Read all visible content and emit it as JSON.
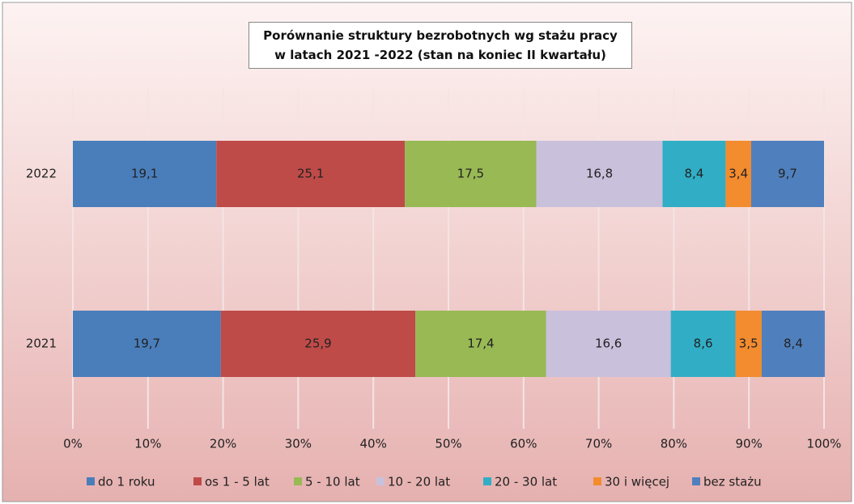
{
  "chart_data": {
    "type": "stacked-barh",
    "title": "Porównanie struktury bezrobotnych wg stażu pracy\nw latach 2021 -2022 (stan na koniec II kwartału)",
    "categories": [
      "2022",
      "2021"
    ],
    "series": [
      {
        "name": "do 1 roku",
        "color": "#4a7ebb",
        "values": [
          19.1,
          19.7
        ],
        "value_labels": [
          "19,1",
          "19,7"
        ]
      },
      {
        "name": "os 1 - 5 lat",
        "color": "#be4b48",
        "values": [
          25.1,
          25.9
        ],
        "value_labels": [
          "25,1",
          "25,9"
        ]
      },
      {
        "name": "5 - 10 lat",
        "color": "#98b954",
        "values": [
          17.5,
          17.4
        ],
        "value_labels": [
          "17,5",
          "17,4"
        ]
      },
      {
        "name": "10 - 20 lat",
        "color": "#c9c0dc",
        "values": [
          16.8,
          16.6
        ],
        "value_labels": [
          "16,8",
          "16,6"
        ]
      },
      {
        "name": "20 - 30 lat",
        "color": "#31aec6",
        "values": [
          8.4,
          8.6
        ],
        "value_labels": [
          "8,4",
          "8,6"
        ]
      },
      {
        "name": "30 i więcej",
        "color": "#f38b2f",
        "values": [
          3.4,
          3.5
        ],
        "value_labels": [
          "3,4",
          "3,5"
        ]
      },
      {
        "name": "bez stażu",
        "color": "#4f80bd",
        "values": [
          9.7,
          8.4
        ],
        "value_labels": [
          "9,7",
          "8,4"
        ]
      }
    ],
    "xlim": [
      0,
      100
    ],
    "xticks": [
      {
        "value": 0,
        "label": "0%"
      },
      {
        "value": 10,
        "label": "10%"
      },
      {
        "value": 20,
        "label": "20%"
      },
      {
        "value": 30,
        "label": "30%"
      },
      {
        "value": 40,
        "label": "40%"
      },
      {
        "value": 50,
        "label": "50%"
      },
      {
        "value": 60,
        "label": "60%"
      },
      {
        "value": 70,
        "label": "70%"
      },
      {
        "value": 80,
        "label": "80%"
      },
      {
        "value": 90,
        "label": "90%"
      },
      {
        "value": 100,
        "label": "100%"
      }
    ],
    "grid": true,
    "legend": "bottom"
  }
}
